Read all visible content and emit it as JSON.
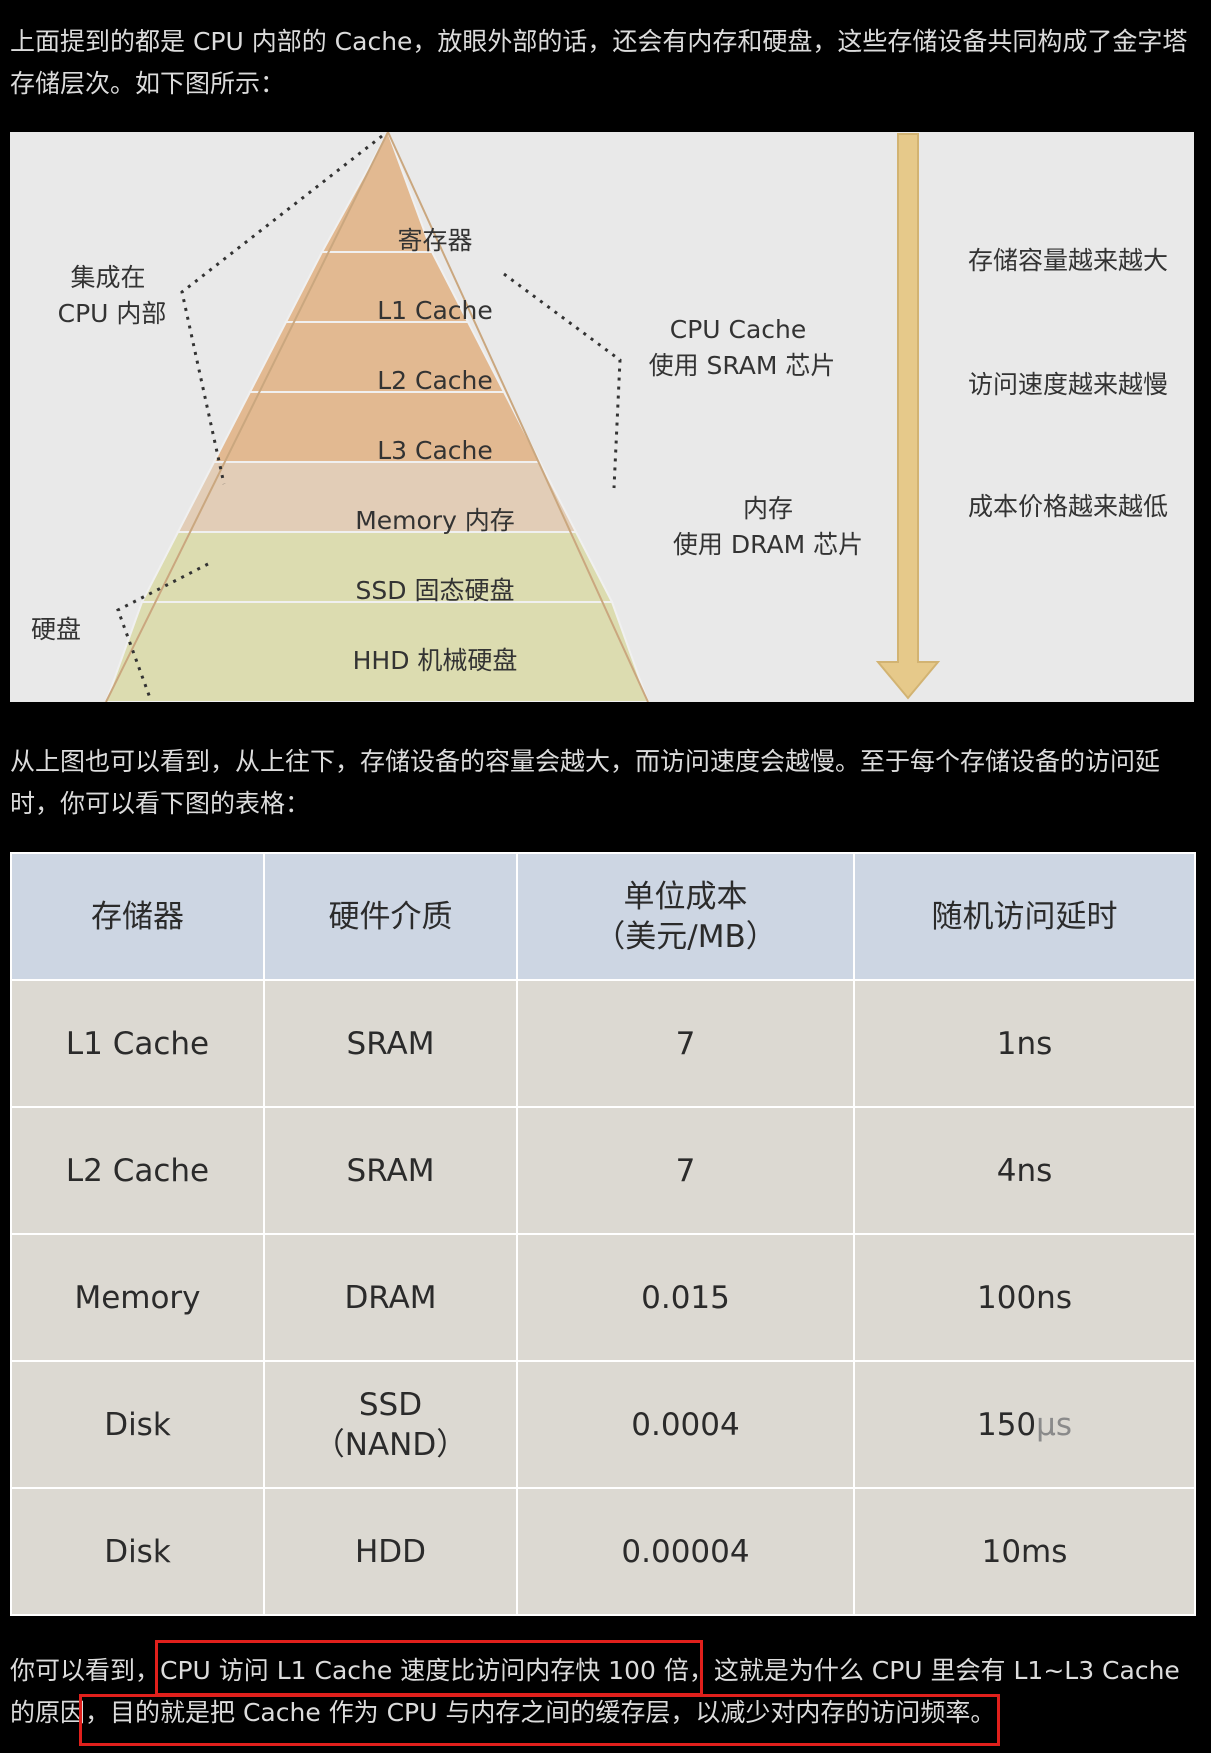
{
  "paragraphs": {
    "intro": "上面提到的都是 CPU 内部的 Cache，放眼外部的话，还会有内存和硬盘，这些存储设备共同构成了金字塔存储层次。如下图所示：",
    "middle": "从上图也可以看到，从上往下，存储设备的容量会越大，而访问速度会越慢。至于每个存储设备的访问延时，你可以看下图的表格：",
    "outro_lead": "你可以看到，",
    "outro_highlight_1": "CPU 访问 L1 Cache 速度比访问内存快 100 倍，",
    "outro_mid": "这就是为什么 CPU 里会有 L1~L3 Cache 的原因，",
    "outro_highlight_2": "目的就是把 Cache 作为 CPU 与内存之间的缓存层，以减少对内存的访问频率。"
  },
  "pyramid": {
    "levels": [
      "寄存器",
      "L1 Cache",
      "L2 Cache",
      "L3 Cache",
      "Memory 内存",
      "SSD 固态硬盘",
      "HHD 机械硬盘"
    ],
    "left_labels": {
      "cpu_line1": "集成在",
      "cpu_line2": "CPU 内部",
      "disk": "硬盘"
    },
    "right_labels": {
      "cache_line1": "CPU Cache",
      "cache_line2": "使用 SRAM 芯片",
      "mem_line1": "内存",
      "mem_line2": "使用 DRAM 芯片"
    },
    "trends": [
      "存储容量越来越大",
      "访问速度越来越慢",
      "成本价格越来越低"
    ],
    "colors": {
      "cache": "#e2b991",
      "memory": "#e2cdb7",
      "disk": "#dcdcb0",
      "arrow": "#e6c98a"
    }
  },
  "table": {
    "headers": [
      "存储器",
      "硬件介质",
      "单位成本\n（美元/MB）",
      "随机访问延时"
    ],
    "header_line1": "单位成本",
    "header_line2": "（美元/MB）",
    "rows": [
      {
        "storage": "L1 Cache",
        "medium": "SRAM",
        "cost": "7",
        "latency": "1ns"
      },
      {
        "storage": "L2 Cache",
        "medium": "SRAM",
        "cost": "7",
        "latency": "4ns"
      },
      {
        "storage": "Memory",
        "medium": "DRAM",
        "cost": "0.015",
        "latency": "100ns"
      },
      {
        "storage": "Disk",
        "medium_line1": "SSD",
        "medium_line2": "（NAND）",
        "cost": "0.0004",
        "latency_num": "150",
        "latency_unit": "μs"
      },
      {
        "storage": "Disk",
        "medium": "HDD",
        "cost": "0.00004",
        "latency": "10ms"
      }
    ]
  }
}
